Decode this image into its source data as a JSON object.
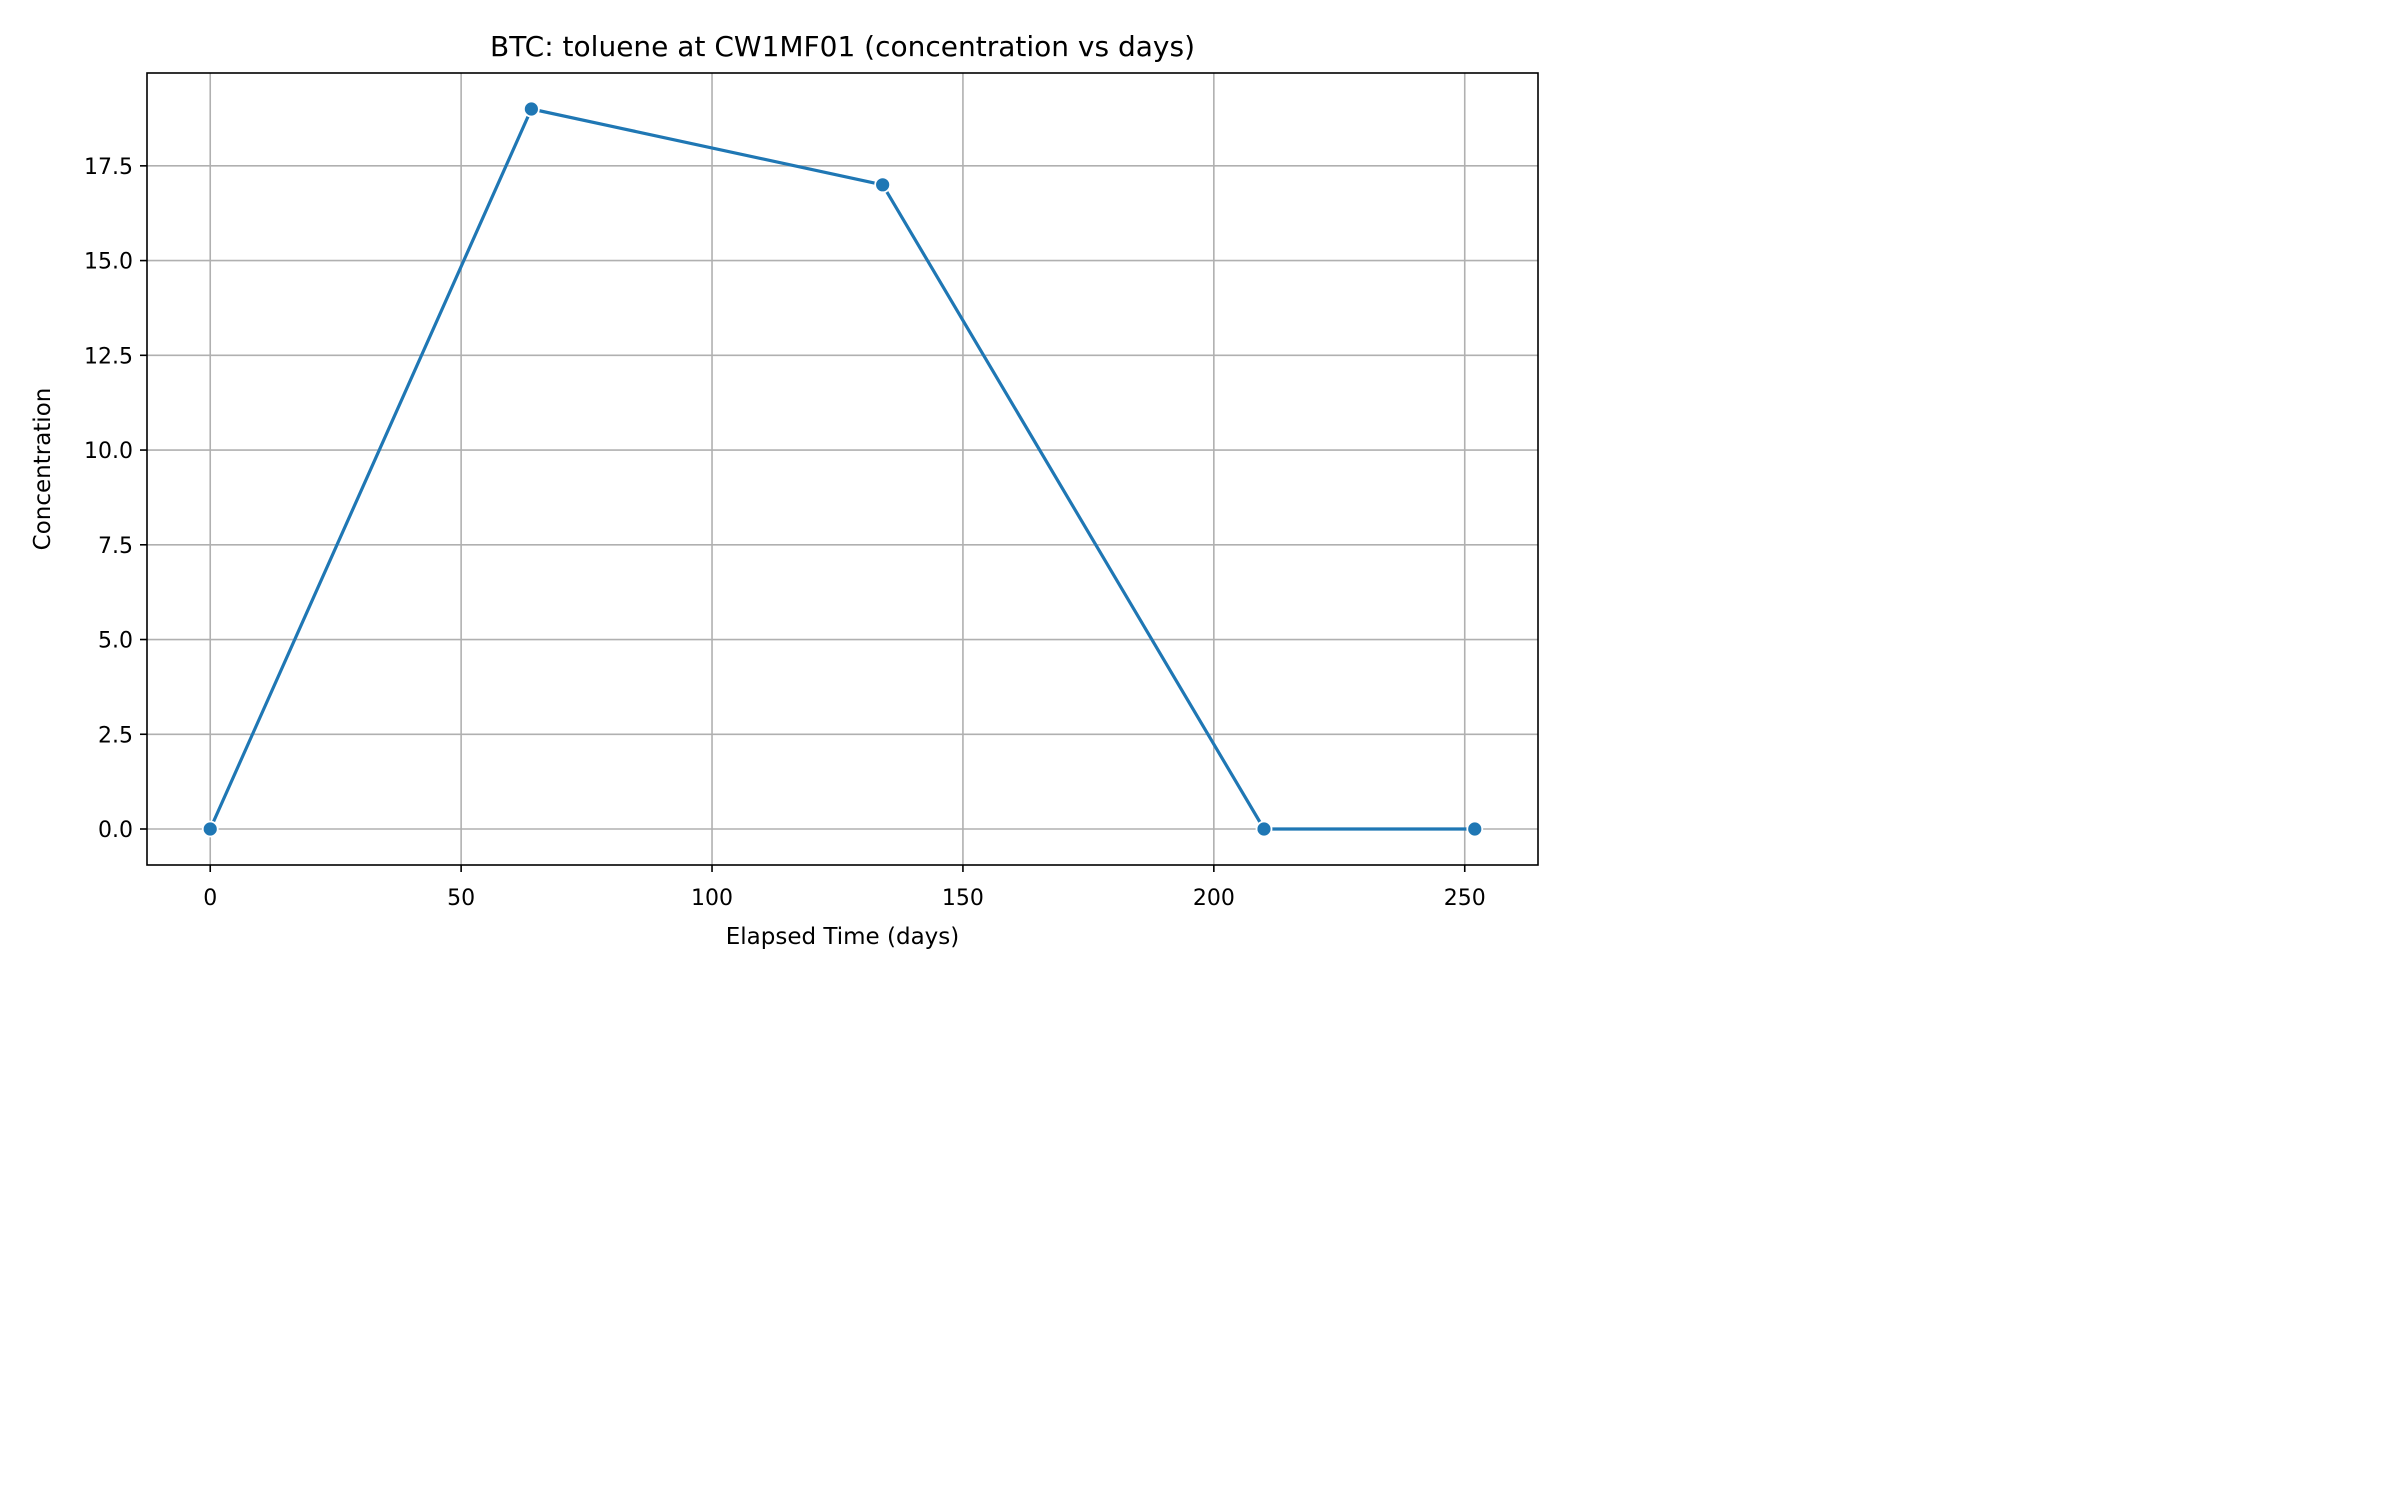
{
  "chart_data": {
    "type": "line",
    "title": "BTC: toluene at CW1MF01 (concentration vs days)",
    "xlabel": "Elapsed Time (days)",
    "ylabel": "Concentration",
    "xlim": [
      -12.6,
      264.6
    ],
    "ylim": [
      -0.95,
      19.95
    ],
    "xticks": [
      0,
      50,
      100,
      150,
      200,
      250
    ],
    "xtick_labels": [
      "0",
      "50",
      "100",
      "150",
      "200",
      "250"
    ],
    "yticks": [
      0,
      2.5,
      5,
      7.5,
      10,
      12.5,
      15,
      17.5
    ],
    "ytick_labels": [
      "0.0",
      "2.5",
      "5.0",
      "7.5",
      "10.0",
      "12.5",
      "15.0",
      "17.5"
    ],
    "grid": true,
    "series": [
      {
        "color": "#1f77b4",
        "marker": "circle",
        "x": [
          0,
          64,
          134,
          210,
          252
        ],
        "y": [
          0,
          19,
          17,
          0,
          0
        ]
      }
    ]
  }
}
